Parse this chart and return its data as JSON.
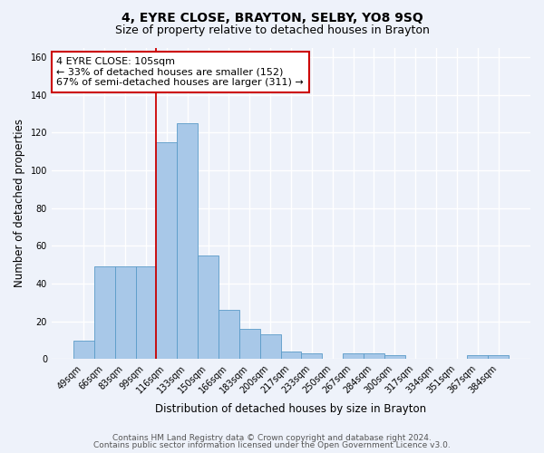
{
  "title": "4, EYRE CLOSE, BRAYTON, SELBY, YO8 9SQ",
  "subtitle": "Size of property relative to detached houses in Brayton",
  "xlabel": "Distribution of detached houses by size in Brayton",
  "ylabel": "Number of detached properties",
  "categories": [
    "49sqm",
    "66sqm",
    "83sqm",
    "99sqm",
    "116sqm",
    "133sqm",
    "150sqm",
    "166sqm",
    "183sqm",
    "200sqm",
    "217sqm",
    "233sqm",
    "250sqm",
    "267sqm",
    "284sqm",
    "300sqm",
    "317sqm",
    "334sqm",
    "351sqm",
    "367sqm",
    "384sqm"
  ],
  "values": [
    10,
    49,
    49,
    49,
    115,
    125,
    55,
    26,
    16,
    13,
    4,
    3,
    0,
    3,
    3,
    2,
    0,
    0,
    0,
    2,
    2
  ],
  "bar_color": "#a8c8e8",
  "bar_edge_color": "#5a9bc8",
  "vline_color": "#cc0000",
  "annotation_line1": "4 EYRE CLOSE: 105sqm",
  "annotation_line2": "← 33% of detached houses are smaller (152)",
  "annotation_line3": "67% of semi-detached houses are larger (311) →",
  "annotation_box_color": "#ffffff",
  "annotation_box_edge": "#cc0000",
  "ylim": [
    0,
    165
  ],
  "yticks": [
    0,
    20,
    40,
    60,
    80,
    100,
    120,
    140,
    160
  ],
  "background_color": "#eef2fa",
  "grid_color": "#ffffff",
  "footer_line1": "Contains HM Land Registry data © Crown copyright and database right 2024.",
  "footer_line2": "Contains public sector information licensed under the Open Government Licence v3.0.",
  "title_fontsize": 10,
  "subtitle_fontsize": 9,
  "axis_label_fontsize": 8.5,
  "tick_fontsize": 7,
  "annotation_fontsize": 8,
  "footer_fontsize": 6.5,
  "vline_index": 3.5
}
